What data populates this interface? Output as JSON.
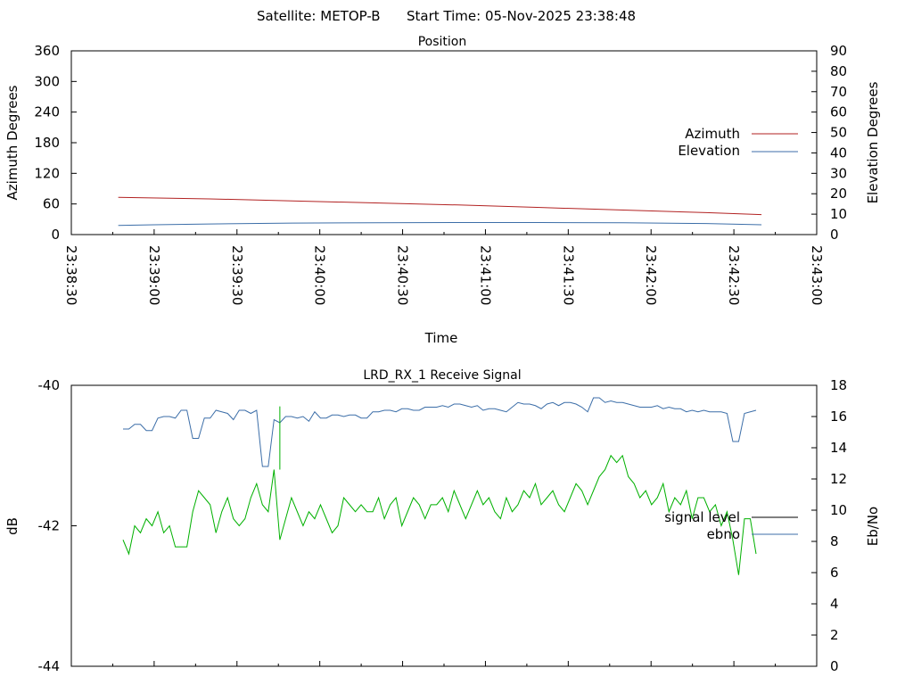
{
  "header": {
    "satellite_label": "Satellite: METOP-B",
    "start_time_label": "Start Time: 05-Nov-2025 23:38:48"
  },
  "colors": {
    "azimuth": "#b22222",
    "elevation": "#3c6ea8",
    "signal_level": "#000000",
    "ebno": "#3c6ea8",
    "green_trace": "#00b000"
  },
  "chart_data": [
    {
      "type": "line",
      "title": "Position",
      "xlabel": "Time",
      "ylabel": "Azimuth Degrees",
      "y2label": "Elevation Degrees",
      "x_ticks": [
        "23:38:30",
        "23:39:00",
        "23:39:30",
        "23:40:00",
        "23:40:30",
        "23:41:00",
        "23:41:30",
        "23:42:00",
        "23:42:30",
        "23:43:00"
      ],
      "x_range_seconds": [
        0,
        270
      ],
      "ylim": [
        0,
        360
      ],
      "y_ticks": [
        "0",
        "60",
        "120",
        "180",
        "240",
        "300",
        "360"
      ],
      "y2lim": [
        0,
        90
      ],
      "y2_ticks": [
        "0",
        "10",
        "20",
        "30",
        "40",
        "50",
        "60",
        "70",
        "80",
        "90"
      ],
      "legend_placement": "right",
      "series": [
        {
          "name": "Azimuth",
          "axis": "y",
          "x": [
            17,
            50,
            80,
            110,
            140,
            170,
            200,
            230,
            250
          ],
          "values": [
            73,
            70,
            66,
            62,
            58,
            53,
            48,
            43,
            39
          ]
        },
        {
          "name": "Elevation",
          "axis": "y2",
          "x": [
            17,
            30,
            50,
            80,
            110,
            140,
            170,
            200,
            230,
            250
          ],
          "values": [
            4.5,
            4.8,
            5.2,
            5.6,
            5.8,
            5.9,
            5.9,
            5.8,
            5.4,
            4.8
          ]
        }
      ]
    },
    {
      "type": "line",
      "title": "LRD_RX_1 Receive Signal",
      "ylabel": "dB",
      "y2label": "Eb/No",
      "ylim": [
        -44,
        -40
      ],
      "y_ticks": [
        "-40",
        "-42",
        "-44"
      ],
      "y2lim": [
        0,
        18
      ],
      "y2_ticks": [
        "0",
        "2",
        "4",
        "6",
        "8",
        "10",
        "12",
        "14",
        "16",
        "18"
      ],
      "legend_placement": "right",
      "legend": [
        "signal level",
        "ebno"
      ],
      "series": [
        {
          "name": "ebno",
          "axis": "y2",
          "values": [
            15.2,
            15.2,
            15.5,
            15.5,
            15.1,
            15.1,
            15.9,
            16.0,
            16.0,
            15.9,
            16.4,
            16.4,
            14.6,
            14.6,
            15.9,
            15.9,
            16.4,
            16.3,
            16.2,
            15.8,
            16.4,
            16.4,
            16.2,
            16.4,
            12.8,
            12.8,
            15.8,
            15.6,
            16.0,
            16.0,
            15.9,
            16.0,
            15.7,
            16.3,
            15.9,
            15.9,
            16.1,
            16.1,
            16.0,
            16.1,
            16.1,
            15.9,
            15.9,
            16.3,
            16.3,
            16.4,
            16.4,
            16.3,
            16.5,
            16.5,
            16.4,
            16.4,
            16.6,
            16.6,
            16.6,
            16.7,
            16.6,
            16.8,
            16.8,
            16.7,
            16.6,
            16.7,
            16.4,
            16.5,
            16.5,
            16.4,
            16.3,
            16.6,
            16.9,
            16.8,
            16.8,
            16.7,
            16.5,
            16.8,
            16.9,
            16.7,
            16.9,
            16.9,
            16.8,
            16.6,
            16.3,
            17.2,
            17.2,
            16.9,
            17.0,
            16.9,
            16.9,
            16.8,
            16.7,
            16.6,
            16.6,
            16.6,
            16.7,
            16.5,
            16.6,
            16.5,
            16.5,
            16.3,
            16.4,
            16.3,
            16.4,
            16.3,
            16.3,
            16.3,
            16.2,
            14.4,
            14.4,
            16.2,
            16.3,
            16.4
          ]
        },
        {
          "name": "signal level",
          "axis": "y",
          "values": [
            -42.2,
            -42.4,
            -42.0,
            -42.1,
            -41.9,
            -42.0,
            -41.8,
            -42.1,
            -42.0,
            -42.3,
            -42.3,
            -42.3,
            -41.8,
            -41.5,
            -41.6,
            -41.7,
            -42.1,
            -41.8,
            -41.6,
            -41.9,
            -42.0,
            -41.9,
            -41.6,
            -41.4,
            -41.7,
            -41.8,
            -41.2,
            -42.2,
            -41.9,
            -41.6,
            -41.8,
            -42.0,
            -41.8,
            -41.9,
            -41.7,
            -41.9,
            -42.1,
            -42.0,
            -41.6,
            -41.7,
            -41.8,
            -41.7,
            -41.8,
            -41.8,
            -41.6,
            -41.9,
            -41.7,
            -41.6,
            -42.0,
            -41.8,
            -41.6,
            -41.7,
            -41.9,
            -41.7,
            -41.7,
            -41.6,
            -41.8,
            -41.5,
            -41.7,
            -41.9,
            -41.7,
            -41.5,
            -41.7,
            -41.6,
            -41.8,
            -41.9,
            -41.6,
            -41.8,
            -41.7,
            -41.5,
            -41.6,
            -41.4,
            -41.7,
            -41.6,
            -41.5,
            -41.7,
            -41.8,
            -41.6,
            -41.4,
            -41.5,
            -41.7,
            -41.5,
            -41.3,
            -41.2,
            -41.0,
            -41.1,
            -41.0,
            -41.3,
            -41.4,
            -41.6,
            -41.5,
            -41.7,
            -41.6,
            -41.4,
            -41.8,
            -41.6,
            -41.7,
            -41.5,
            -41.9,
            -41.6,
            -41.6,
            -41.8,
            -41.7,
            -42.0,
            -41.8,
            -42.2,
            -42.7,
            -41.9,
            -41.9,
            -42.4
          ]
        }
      ]
    }
  ]
}
